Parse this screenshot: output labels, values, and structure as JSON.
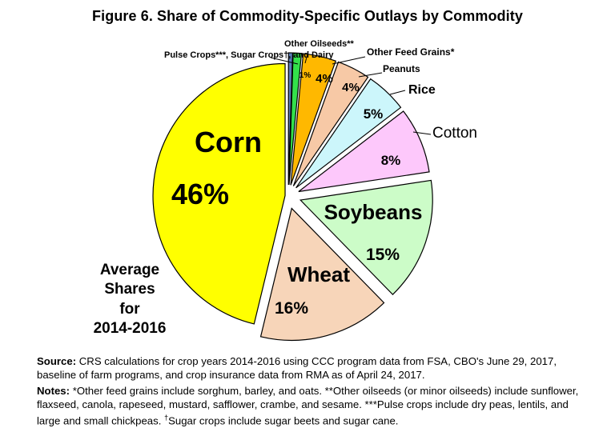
{
  "title": "Figure 6. Share of Commodity-Specific Outlays by Commodity",
  "chart_data": {
    "type": "pie",
    "title": "Figure 6. Share of Commodity-Specific Outlays by Commodity",
    "slices": [
      {
        "name": "Pulse Crops***, Sugar Crops†, and Dairy",
        "value": 0.5,
        "label": "",
        "color": "#5b7db8"
      },
      {
        "name": "Other Oilseeds**",
        "value": 1,
        "label": "1%",
        "color": "#33e04a"
      },
      {
        "name": "Other Feed Grains*",
        "value": 4,
        "label": "4%",
        "color": "#ffb800"
      },
      {
        "name": "Peanuts",
        "value": 4,
        "label": "4%",
        "color": "#f7c9a6"
      },
      {
        "name": "Rice",
        "value": 5,
        "label": "5%",
        "color": "#ccf6fb"
      },
      {
        "name": "Cotton",
        "value": 8,
        "label": "8%",
        "color": "#fdc8fb"
      },
      {
        "name": "Soybeans",
        "value": 15,
        "label": "15%",
        "color": "#ccfcc8"
      },
      {
        "name": "Wheat",
        "value": 16,
        "label": "16%",
        "color": "#f7d5b9"
      },
      {
        "name": "Corn",
        "value": 46,
        "label": "46%",
        "color": "#ffff00"
      }
    ],
    "annotation": [
      "Average",
      "Shares",
      "for",
      "2014-2016"
    ]
  },
  "footer": {
    "source_label": "Source:",
    "source_text": " CRS calculations for crop years 2014-2016 using CCC program data from FSA, CBO's June 29, 2017, baseline of farm programs, and crop insurance data from RMA as of April 24, 2017.",
    "notes_label": "Notes:",
    "notes_text": " *Other feed grains include sorghum, barley, and oats. **Other oilseeds (or minor oilseeds) include sunflower, flaxseed, canola, rapeseed, mustard, safflower, crambe, and sesame. ***Pulse crops include dry peas, lentils, and large and small chickpeas. ",
    "sugar_dagger": "†",
    "sugar_text": "Sugar crops include sugar beets and sugar cane."
  }
}
